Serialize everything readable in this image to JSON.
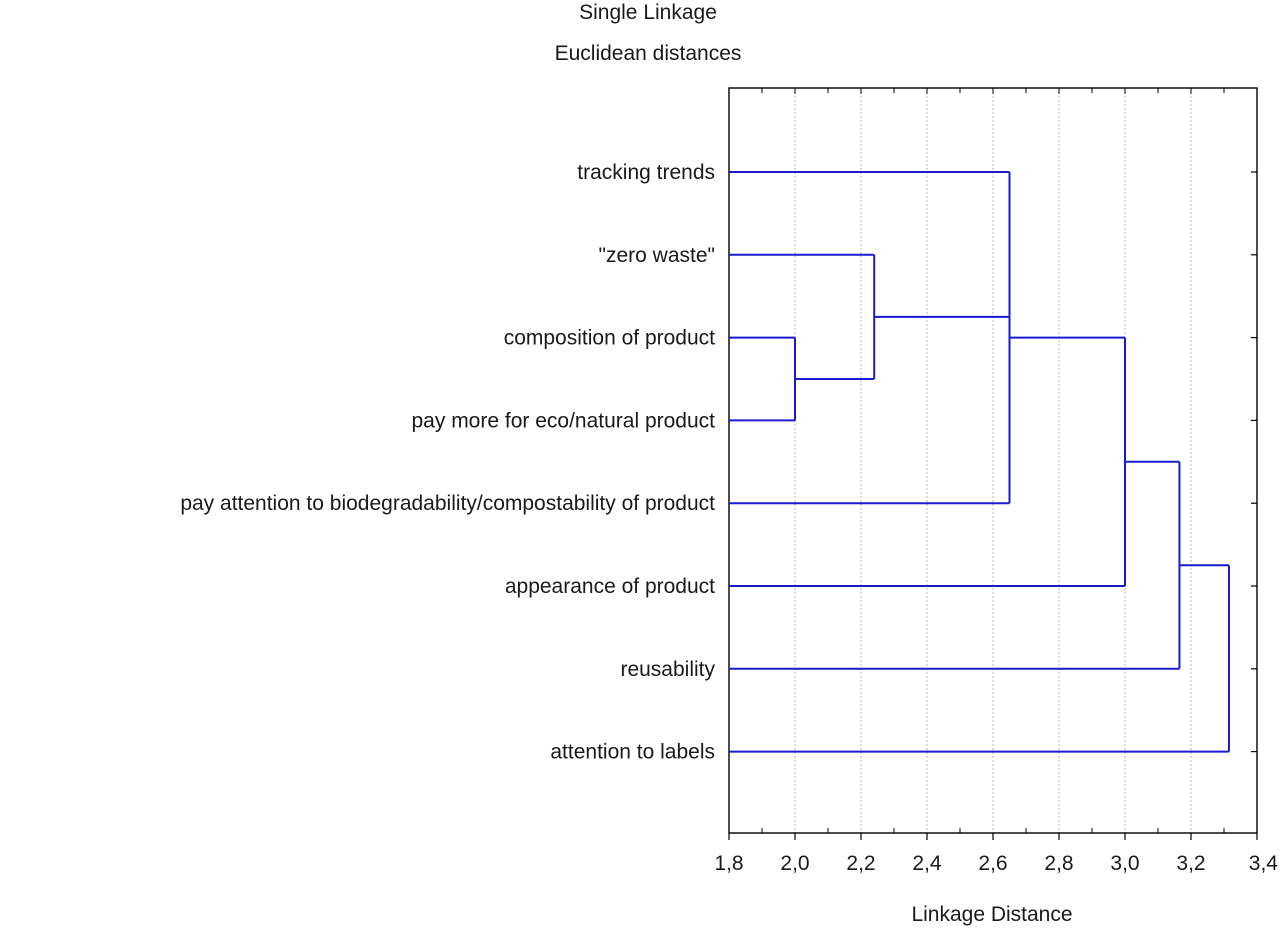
{
  "chart_data": {
    "type": "dendrogram",
    "title": "Single Linkage",
    "subtitle": "Euclidean distances",
    "xlabel": "Linkage Distance",
    "xlim": [
      1.8,
      3.4
    ],
    "x_ticks": [
      "1,8",
      "2,0",
      "2,2",
      "2,4",
      "2,6",
      "2,8",
      "3,0",
      "3,2",
      "3,4"
    ],
    "x_tick_values": [
      1.8,
      2.0,
      2.2,
      2.4,
      2.6,
      2.8,
      3.0,
      3.2,
      3.4
    ],
    "grid": true,
    "line_color": "#1a1ad0",
    "leaves": [
      "tracking trends",
      "\"zero waste\"",
      "composition of product",
      "pay more for eco/natural product",
      "pay attention to biodegradability/compostability of product",
      "appearance of product",
      "reusability",
      "attention to labels"
    ],
    "merges": [
      {
        "members": [
          "composition of product",
          "pay more for eco/natural product"
        ],
        "distance": 2.0
      },
      {
        "members": [
          "\"zero waste\"",
          "composition of product",
          "pay more for eco/natural product"
        ],
        "distance": 2.24
      },
      {
        "members": [
          "tracking trends",
          "\"zero waste\"",
          "composition of product",
          "pay more for eco/natural product",
          "pay attention to biodegradability/compostability of product"
        ],
        "distance": 2.65
      },
      {
        "members": [
          "tracking trends",
          "\"zero waste\"",
          "composition of product",
          "pay more for eco/natural product",
          "pay attention to biodegradability/compostability of product",
          "appearance of product"
        ],
        "distance": 3.0
      },
      {
        "members": [
          "tracking trends",
          "\"zero waste\"",
          "composition of product",
          "pay more for eco/natural product",
          "pay attention to biodegradability/compostability of product",
          "appearance of product",
          "reusability"
        ],
        "distance": 3.165
      },
      {
        "members": [
          "tracking trends",
          "\"zero waste\"",
          "composition of product",
          "pay more for eco/natural product",
          "pay attention to biodegradability/compostability of product",
          "appearance of product",
          "reusability",
          "attention to labels"
        ],
        "distance": 3.315
      }
    ]
  }
}
